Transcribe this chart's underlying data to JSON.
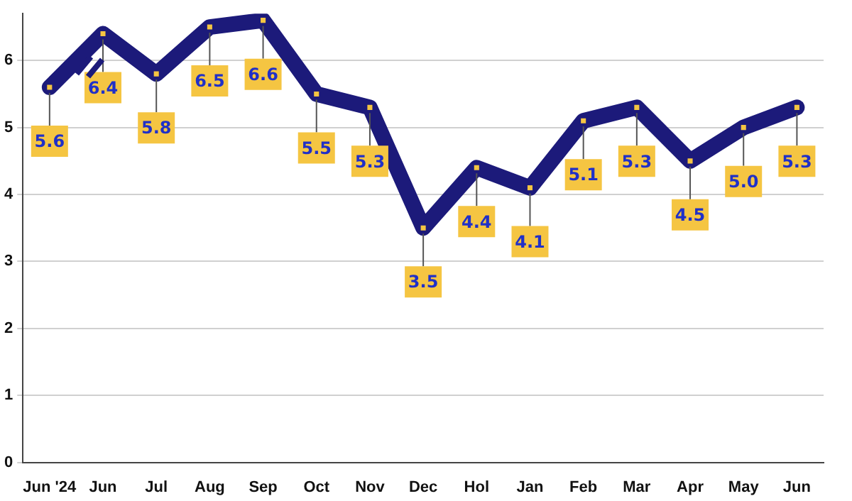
{
  "chart_data": {
    "type": "line",
    "categories": [
      "Jun '24",
      "Jun",
      "Jul",
      "Aug",
      "Sep",
      "Oct",
      "Nov",
      "Dec",
      "Hol",
      "Jan",
      "Feb",
      "Mar",
      "Apr",
      "May",
      "Jun"
    ],
    "series": [
      {
        "color": "#1c1a7a",
        "values": [
          5.6,
          6.4,
          5.8,
          6.5,
          6.6,
          5.5,
          5.3,
          3.5,
          4.4,
          4.1,
          5.1,
          5.3,
          4.5,
          5.0,
          5.3
        ],
        "value_labels": [
          "5.6",
          "6.4",
          "5.8",
          "6.5",
          "6.6",
          "5.5",
          "5.3",
          "3.5",
          "4.4",
          "4.1",
          "5.1",
          "5.3",
          "4.5",
          "5.0",
          "5.3"
        ]
      }
    ],
    "ylim": [
      0,
      6.7
    ],
    "yticks": [
      0,
      1,
      2,
      3,
      4,
      5,
      6
    ],
    "grid": "y",
    "marker": "square",
    "legend": false
  }
}
